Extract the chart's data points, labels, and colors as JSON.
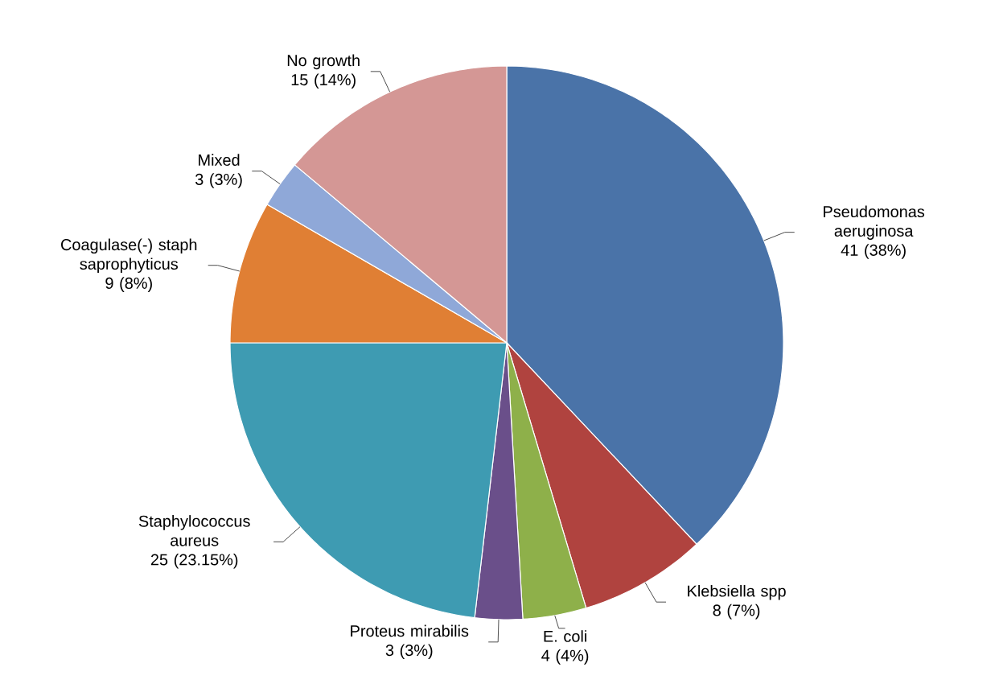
{
  "chart_data": {
    "type": "pie",
    "categories": [
      "Pseudomonas aeruginosa",
      "Klebsiella spp",
      "E. coli",
      "Proteus mirabilis",
      "Staphylococcus aureus",
      "Coagulase(-) staph saprophyticus",
      "Mixed",
      "No growth"
    ],
    "values": [
      41,
      8,
      4,
      3,
      25,
      9,
      3,
      15
    ],
    "value_labels": [
      "41 (38%)",
      "8 (7%)",
      "4 (4%)",
      "3 (3%)",
      "25 (23.15%)",
      "9 (8%)",
      "3 (3%)",
      "15 (14%)"
    ],
    "colors": [
      "#4a73a8",
      "#b0433f",
      "#8eb04a",
      "#6a4f8a",
      "#3e9bb2",
      "#e07f34",
      "#8fa8d8",
      "#d49795"
    ]
  }
}
